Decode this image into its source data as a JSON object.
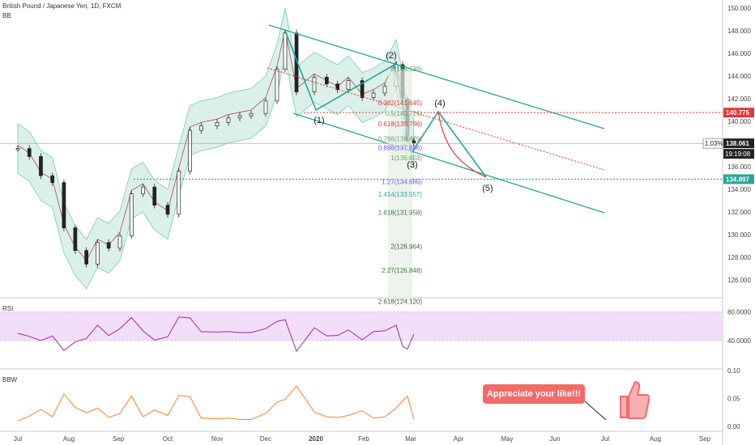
{
  "header": {
    "title": "British Pound / Japanese Yen, 1D, FXCM",
    "indicator": "BB"
  },
  "panels": {
    "rsi_label": "RSI",
    "bbw_label": "BBW"
  },
  "callout": {
    "text": "Appreciate your like!!!"
  },
  "colors": {
    "accent": "#26a69a",
    "red": "#e53935",
    "purple": "#9c27b0",
    "orange": "#ff7f2a",
    "band_fill": "#d8efe9",
    "rsi_fill": "#efd6f8"
  },
  "icons": [
    "thumbs-up-icon"
  ],
  "chart_data": {
    "type": "candlestick",
    "title": "British Pound / Japanese Yen, 1D, FXCM",
    "x_labels": [
      "Jul",
      "Aug",
      "Sep",
      "Oct",
      "Nov",
      "Dec",
      "2020",
      "Feb",
      "Mar",
      "Apr",
      "May",
      "Jun",
      "Jul",
      "Aug",
      "Sep"
    ],
    "y_ticks": [
      "150.000",
      "148.000",
      "146.000",
      "144.000",
      "142.000",
      "140.000",
      "138.000",
      "136.000",
      "134.000",
      "132.000",
      "130.000",
      "128.000",
      "126.000"
    ],
    "ylim": [
      124.8,
      150.5
    ],
    "price_series": {
      "name": "GBPJPY",
      "points": [
        {
          "date": "2019-07-01",
          "close": 137.6
        },
        {
          "date": "2019-07-08",
          "close": 136.9
        },
        {
          "date": "2019-07-15",
          "close": 135.2
        },
        {
          "date": "2019-07-22",
          "close": 134.6
        },
        {
          "date": "2019-07-29",
          "close": 130.6
        },
        {
          "date": "2019-08-05",
          "close": 128.6
        },
        {
          "date": "2019-08-12",
          "close": 127.4
        },
        {
          "date": "2019-08-19",
          "close": 129.3
        },
        {
          "date": "2019-08-26",
          "close": 128.8
        },
        {
          "date": "2019-09-02",
          "close": 129.9
        },
        {
          "date": "2019-09-09",
          "close": 133.6
        },
        {
          "date": "2019-09-16",
          "close": 134.2
        },
        {
          "date": "2019-09-23",
          "close": 132.6
        },
        {
          "date": "2019-10-01",
          "close": 131.8
        },
        {
          "date": "2019-10-08",
          "close": 135.6
        },
        {
          "date": "2019-10-15",
          "close": 139.2
        },
        {
          "date": "2019-10-22",
          "close": 139.6
        },
        {
          "date": "2019-11-01",
          "close": 139.9
        },
        {
          "date": "2019-11-08",
          "close": 140.3
        },
        {
          "date": "2019-11-15",
          "close": 140.5
        },
        {
          "date": "2019-11-22",
          "close": 140.7
        },
        {
          "date": "2019-12-01",
          "close": 141.8
        },
        {
          "date": "2019-12-08",
          "close": 144.6
        },
        {
          "date": "2019-12-13",
          "close": 147.8
        },
        {
          "date": "2019-12-20",
          "close": 142.6
        },
        {
          "date": "2019-12-31",
          "close": 143.9
        },
        {
          "date": "2020-01-08",
          "close": 143.3
        },
        {
          "date": "2020-01-15",
          "close": 142.8
        },
        {
          "date": "2020-01-22",
          "close": 143.6
        },
        {
          "date": "2020-01-31",
          "close": 142.1
        },
        {
          "date": "2020-02-07",
          "close": 142.5
        },
        {
          "date": "2020-02-14",
          "close": 143.1
        },
        {
          "date": "2020-02-21",
          "close": 145.0
        },
        {
          "date": "2020-02-25",
          "close": 142.0
        },
        {
          "date": "2020-02-28",
          "close": 138.3
        },
        {
          "date": "2020-03-03",
          "close": 138.1
        }
      ]
    },
    "price_labels": [
      {
        "value": 140.775,
        "text": "140.775",
        "color": "#e53935"
      },
      {
        "value": 138.061,
        "text": "138.061",
        "color": "#222222"
      },
      {
        "value": 134.897,
        "text": "134.897",
        "color": "#26a69a"
      }
    ],
    "badges": [
      "1.03%",
      "19:19:08"
    ],
    "fib_levels": [
      {
        "ratio": "0",
        "text": "0(144.639)",
        "value": 144.639
      },
      {
        "ratio": "0.382",
        "text": "0.382(141.645)",
        "value": 141.645
      },
      {
        "ratio": "0.5",
        "text": "0.5(140.721)",
        "value": 140.721
      },
      {
        "ratio": "0.618",
        "text": "0.618(139.796)",
        "value": 139.796
      },
      {
        "ratio": "0.786",
        "text": "0.786(138.479)",
        "value": 138.479
      },
      {
        "ratio": "0.886",
        "text": "0.886(137.696)",
        "value": 137.696
      },
      {
        "ratio": "1",
        "text": "1(136.803)",
        "value": 136.803
      },
      {
        "ratio": "1.27",
        "text": "1.27(134.686)",
        "value": 134.686
      },
      {
        "ratio": "1.414",
        "text": "1.414(133.557)",
        "value": 133.557
      },
      {
        "ratio": "1.618",
        "text": "1.618(131.958)",
        "value": 131.958
      },
      {
        "ratio": "2",
        "text": "2(128.964)",
        "value": 128.964
      },
      {
        "ratio": "2.27",
        "text": "2.27(126.848)",
        "value": 126.848
      },
      {
        "ratio": "2.618",
        "text": "2.618(124.120)",
        "value": 124.12
      }
    ],
    "wave_labels": [
      "(1)",
      "(2)",
      "(3)",
      "(4)",
      "(5)"
    ],
    "rsi": {
      "label": "RSI",
      "ticks": [
        "80.0000",
        "40.0000"
      ],
      "ylim": [
        0,
        100
      ]
    },
    "bbw": {
      "label": "BBW",
      "ticks": [
        "0.10",
        "0.05",
        "0.00"
      ],
      "ylim": [
        0,
        0.1
      ]
    }
  }
}
